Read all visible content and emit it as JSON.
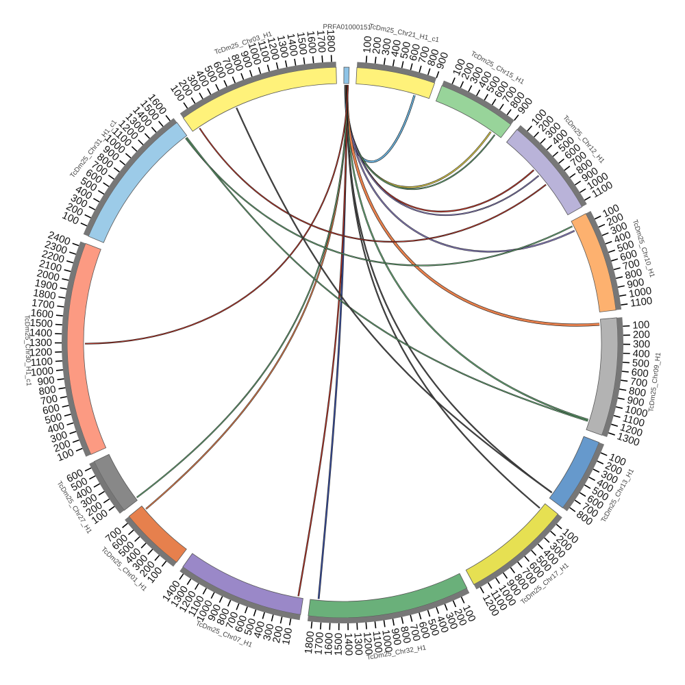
{
  "chart_data": {
    "type": "chord",
    "tick_interval": 100,
    "chromosomes": [
      {
        "name": "PRFA01000151",
        "length": 60,
        "color": "#8ec3e6"
      },
      {
        "name": "TcDm25_Chr21_H1_c1",
        "length": 900,
        "color": "#fff27a"
      },
      {
        "name": "TcDm25_Chr15_H1",
        "length": 900,
        "color": "#98d49a"
      },
      {
        "name": "TcDm25_Chr12_H1",
        "length": 1150,
        "color": "#b9b3d9"
      },
      {
        "name": "TcDm25_Chr10_H1",
        "length": 1150,
        "color": "#fdb16f"
      },
      {
        "name": "TcDm25_Chr09_H1",
        "length": 1350,
        "color": "#b3b3b3"
      },
      {
        "name": "TcDm25_Chr13_H1",
        "length": 850,
        "color": "#6699cc"
      },
      {
        "name": "TcDm25_Chr17_H1",
        "length": 1250,
        "color": "#e6e052"
      },
      {
        "name": "TcDm25_Chr32_H1",
        "length": 1850,
        "color": "#6ab07a"
      },
      {
        "name": "TcDm25_Chr07_H1",
        "length": 1450,
        "color": "#9a88c8"
      },
      {
        "name": "TcDm25_Chr01_H1",
        "length": 750,
        "color": "#e6804d"
      },
      {
        "name": "TcDm25_Chr27_H1",
        "length": 650,
        "color": "#888888"
      },
      {
        "name": "TcDm25_Chr30_H1_c1",
        "length": 2450,
        "color": "#fc9a82"
      },
      {
        "name": "TcDm25_Chr31_H1_c1",
        "length": 1650,
        "color": "#9ccbe8"
      },
      {
        "name": "TcDm25_Chr03_H1",
        "length": 1850,
        "color": "#fff27a"
      }
    ],
    "links": [
      {
        "source": "PRFA01000151",
        "source_pos": 20,
        "target": "TcDm25_Chr21_H1_c1",
        "target_pos": 720,
        "color": "#6baed6",
        "width": 2
      },
      {
        "source": "PRFA01000151",
        "source_pos": 25,
        "target": "TcDm25_Chr15_H1",
        "target_pos": 760,
        "color": "#d9c84a",
        "width": 1.5
      },
      {
        "source": "PRFA01000151",
        "source_pos": 28,
        "target": "TcDm25_Chr15_H1",
        "target_pos": 820,
        "color": "#6ab07a",
        "width": 1
      },
      {
        "source": "PRFA01000151",
        "source_pos": 30,
        "target": "TcDm25_Chr12_H1",
        "target_pos": 470,
        "color": "#c0392b",
        "width": 1.2
      },
      {
        "source": "PRFA01000151",
        "source_pos": 32,
        "target": "TcDm25_Chr12_H1",
        "target_pos": 560,
        "color": "#8a7fc0",
        "width": 1
      },
      {
        "source": "PRFA01000151",
        "source_pos": 34,
        "target": "TcDm25_Chr10_H1",
        "target_pos": 120,
        "color": "#8a7fc0",
        "width": 1.3
      },
      {
        "source": "PRFA01000151",
        "source_pos": 36,
        "target": "TcDm25_Chr09_H1",
        "target_pos": 60,
        "color": "#e6804d",
        "width": 3
      },
      {
        "source": "PRFA01000151",
        "source_pos": 38,
        "target": "TcDm25_Chr09_H1",
        "target_pos": 1230,
        "color": "#6ab07a",
        "width": 1.3
      },
      {
        "source": "PRFA01000151",
        "source_pos": 40,
        "target": "TcDm25_Chr13_H1",
        "target_pos": 780,
        "color": "#555555",
        "width": 1
      },
      {
        "source": "PRFA01000151",
        "source_pos": 42,
        "target": "TcDm25_Chr17_H1",
        "target_pos": 80,
        "color": "#555555",
        "width": 1
      },
      {
        "source": "PRFA01000151",
        "source_pos": 44,
        "target": "TcDm25_Chr32_H1",
        "target_pos": 1750,
        "color": "#3a4fa0",
        "width": 1.5
      },
      {
        "source": "PRFA01000151",
        "source_pos": 46,
        "target": "TcDm25_Chr07_H1",
        "target_pos": 60,
        "color": "#c0392b",
        "width": 1.2
      },
      {
        "source": "PRFA01000151",
        "source_pos": 47,
        "target": "TcDm25_Chr01_H1",
        "target_pos": 690,
        "color": "#e6804d",
        "width": 1.2
      },
      {
        "source": "PRFA01000151",
        "source_pos": 48,
        "target": "TcDm25_Chr27_H1",
        "target_pos": 30,
        "color": "#6ab07a",
        "width": 1
      },
      {
        "source": "PRFA01000151",
        "source_pos": 50,
        "target": "TcDm25_Chr30_H1_c1",
        "target_pos": 1290,
        "color": "#c0392b",
        "width": 1
      },
      {
        "source": "TcDm25_Chr12_H1",
        "source_pos": 700,
        "target": "TcDm25_Chr03_H1",
        "target_pos": 90,
        "color": "#c0392b",
        "width": 1
      },
      {
        "source": "TcDm25_Chr31_H1_c1",
        "source_pos": 1620,
        "target": "TcDm25_Chr10_H1",
        "target_pos": 60,
        "color": "#6ab07a",
        "width": 1
      },
      {
        "source": "TcDm25_Chr31_H1_c1",
        "source_pos": 1635,
        "target": "TcDm25_Chr09_H1",
        "target_pos": 1245,
        "color": "#6ab07a",
        "width": 1
      },
      {
        "source": "TcDm25_Chr03_H1",
        "source_pos": 600,
        "target": "TcDm25_Chr13_H1",
        "target_pos": 780,
        "color": "#555555",
        "width": 1
      }
    ]
  }
}
